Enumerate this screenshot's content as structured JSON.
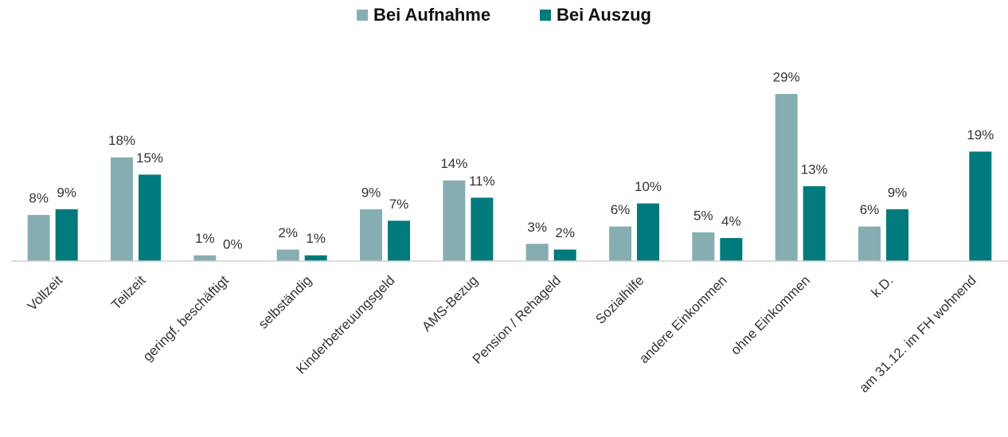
{
  "chart_data": {
    "type": "bar",
    "categories": [
      "Vollzeit",
      "Teilzeit",
      "geringf. beschäftigt",
      "selbständig",
      "Kinderbetreuungsgeld",
      "AMS-Bezug",
      "Pension / Rehageld",
      "Sozialhilfe",
      "andere Einkommen",
      "ohne Einkommen",
      "k.D.",
      "am 31.12. im FH wohnend"
    ],
    "series": [
      {
        "name": "Bei Aufnahme",
        "color": "#86aeb2",
        "values": [
          8,
          18,
          1,
          2,
          9,
          14,
          3,
          6,
          5,
          29,
          6,
          null
        ],
        "value_labels": [
          "8%",
          "18%",
          "1%",
          "2%",
          "9%",
          "14%",
          "3%",
          "6%",
          "5%",
          "29%",
          "6%",
          null
        ]
      },
      {
        "name": "Bei Auszug",
        "color": "#007a7c",
        "values": [
          9,
          15,
          0,
          1,
          7,
          11,
          2,
          10,
          4,
          13,
          9,
          19
        ],
        "value_labels": [
          "9%",
          "15%",
          "0%",
          "1%",
          "7%",
          "11%",
          "2%",
          "10%",
          "4%",
          "13%",
          "9%",
          "19%"
        ]
      }
    ],
    "legend": "top"
  }
}
